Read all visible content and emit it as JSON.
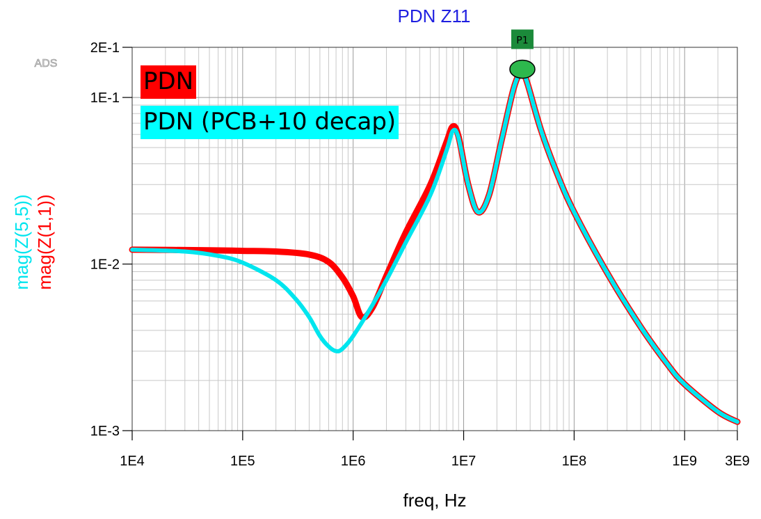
{
  "chart_data": {
    "type": "line",
    "title": "PDN Z11",
    "xlabel": "freq, Hz",
    "ylabel_series": [
      {
        "text": "mag(Z(1,1))",
        "color": "#ff0000"
      },
      {
        "text": "mag(Z(5,5))",
        "color": "#00e5ee"
      }
    ],
    "watermark": "ADS",
    "x_scale": "log",
    "y_scale": "log",
    "xlim": [
      10000,
      3000000000
    ],
    "ylim": [
      0.001,
      0.2
    ],
    "x_ticks": [
      {
        "value": 10000,
        "label": "1E4"
      },
      {
        "value": 100000,
        "label": "1E5"
      },
      {
        "value": 1000000,
        "label": "1E6"
      },
      {
        "value": 10000000,
        "label": "1E7"
      },
      {
        "value": 100000000,
        "label": "1E8"
      },
      {
        "value": 1000000000,
        "label": "1E9"
      },
      {
        "value": 3000000000,
        "label": "3E9"
      }
    ],
    "y_ticks": [
      {
        "value": 0.001,
        "label": "1E-3"
      },
      {
        "value": 0.01,
        "label": "1E-2"
      },
      {
        "value": 0.1,
        "label": "1E-1"
      },
      {
        "value": 0.2,
        "label": "2E-1"
      }
    ],
    "grid": true,
    "legend": [
      {
        "label": "PDN",
        "color": "#ff0000"
      },
      {
        "label": "PDN (PCB+10 decap)",
        "color": "#00ffff"
      }
    ],
    "series": [
      {
        "name": "PDN",
        "color": "#ff0000",
        "points": [
          [
            10000,
            0.0122
          ],
          [
            50000,
            0.0121
          ],
          [
            100000,
            0.012
          ],
          [
            200000,
            0.0119
          ],
          [
            400000,
            0.0114
          ],
          [
            600000,
            0.0103
          ],
          [
            800000,
            0.0083
          ],
          [
            1000000,
            0.0064
          ],
          [
            1200000,
            0.0048
          ],
          [
            1500000,
            0.0055
          ],
          [
            2000000,
            0.0085
          ],
          [
            3000000,
            0.0155
          ],
          [
            5000000,
            0.03
          ],
          [
            7000000,
            0.054
          ],
          [
            8000000,
            0.067
          ],
          [
            9000000,
            0.058
          ],
          [
            11000000,
            0.03
          ],
          [
            13500000,
            0.0205
          ],
          [
            17000000,
            0.026
          ],
          [
            22000000,
            0.055
          ],
          [
            28000000,
            0.11
          ],
          [
            32000000,
            0.14
          ],
          [
            34000000,
            0.145
          ],
          [
            38000000,
            0.12
          ],
          [
            50000000,
            0.064
          ],
          [
            70000000,
            0.035
          ],
          [
            100000000,
            0.0205
          ],
          [
            200000000,
            0.0088
          ],
          [
            400000000,
            0.0042
          ],
          [
            700000000,
            0.0025
          ],
          [
            1000000000,
            0.0019
          ],
          [
            2000000000,
            0.0013
          ],
          [
            3000000000,
            0.00113
          ]
        ]
      },
      {
        "name": "PDN (PCB+10 decap)",
        "color": "#00e5ee",
        "points": [
          [
            10000,
            0.0122
          ],
          [
            30000,
            0.0119
          ],
          [
            60000,
            0.0112
          ],
          [
            100000,
            0.0102
          ],
          [
            200000,
            0.008
          ],
          [
            300000,
            0.0062
          ],
          [
            400000,
            0.0048
          ],
          [
            500000,
            0.0037
          ],
          [
            600000,
            0.0032
          ],
          [
            700000,
            0.003
          ],
          [
            800000,
            0.0031
          ],
          [
            1000000,
            0.0037
          ],
          [
            1500000,
            0.0057
          ],
          [
            2000000,
            0.008
          ],
          [
            3000000,
            0.0135
          ],
          [
            5000000,
            0.026
          ],
          [
            7000000,
            0.048
          ],
          [
            8000000,
            0.063
          ],
          [
            9000000,
            0.057
          ],
          [
            11000000,
            0.03
          ],
          [
            13500000,
            0.0205
          ],
          [
            17000000,
            0.026
          ],
          [
            22000000,
            0.055
          ],
          [
            28000000,
            0.11
          ],
          [
            32000000,
            0.14
          ],
          [
            34000000,
            0.145
          ],
          [
            38000000,
            0.12
          ],
          [
            50000000,
            0.064
          ],
          [
            70000000,
            0.035
          ],
          [
            100000000,
            0.0205
          ],
          [
            200000000,
            0.0088
          ],
          [
            400000000,
            0.0042
          ],
          [
            700000000,
            0.0025
          ],
          [
            1000000000,
            0.0019
          ],
          [
            2000000000,
            0.0013
          ],
          [
            3000000000,
            0.00113
          ]
        ]
      }
    ],
    "markers": [
      {
        "label": "P1",
        "x": 34000000,
        "y": 0.145,
        "color": "#1b8a3a"
      }
    ]
  }
}
